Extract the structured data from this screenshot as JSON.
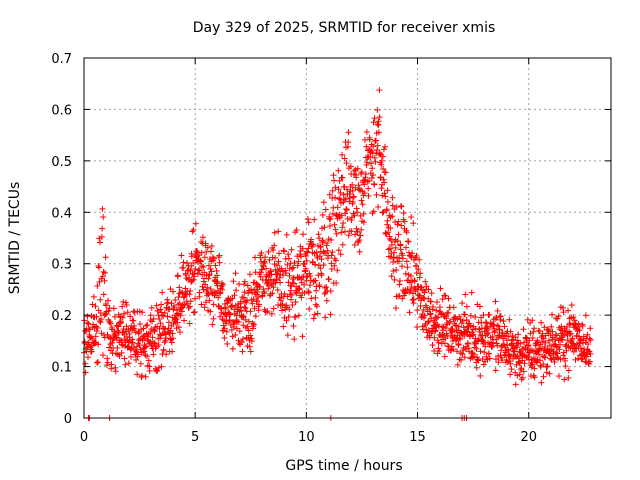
{
  "chart_data": {
    "type": "scatter",
    "title": "Day 329 of 2025, SRMTID for receiver xmis",
    "xlabel": "GPS time / hours",
    "ylabel": "SRMTID / TECUs",
    "xlim": [
      0,
      23.7
    ],
    "ylim": [
      0,
      0.7
    ],
    "xticks": [
      0,
      5,
      10,
      15,
      20
    ],
    "yticks": [
      0,
      0.1,
      0.2,
      0.3,
      0.4,
      0.5,
      0.6,
      0.7
    ],
    "ytick_labels": [
      "0",
      "0.1",
      "0.2",
      "0.3",
      "0.4",
      "0.5",
      "0.6",
      "0.7"
    ],
    "grid": true,
    "marker": "plus",
    "color": "#ff0000",
    "trend": [
      {
        "x": 0.0,
        "y": 0.14,
        "spread": 0.05
      },
      {
        "x": 0.5,
        "y": 0.17,
        "spread": 0.06
      },
      {
        "x": 0.8,
        "y": 0.25,
        "spread": 0.12
      },
      {
        "x": 1.2,
        "y": 0.15,
        "spread": 0.05
      },
      {
        "x": 2.0,
        "y": 0.17,
        "spread": 0.05
      },
      {
        "x": 3.0,
        "y": 0.15,
        "spread": 0.05
      },
      {
        "x": 4.0,
        "y": 0.19,
        "spread": 0.06
      },
      {
        "x": 4.6,
        "y": 0.26,
        "spread": 0.06
      },
      {
        "x": 5.2,
        "y": 0.3,
        "spread": 0.07
      },
      {
        "x": 6.0,
        "y": 0.24,
        "spread": 0.06
      },
      {
        "x": 6.5,
        "y": 0.2,
        "spread": 0.05
      },
      {
        "x": 7.5,
        "y": 0.21,
        "spread": 0.06
      },
      {
        "x": 8.0,
        "y": 0.28,
        "spread": 0.05
      },
      {
        "x": 8.7,
        "y": 0.26,
        "spread": 0.07
      },
      {
        "x": 9.5,
        "y": 0.25,
        "spread": 0.08
      },
      {
        "x": 10.5,
        "y": 0.3,
        "spread": 0.08
      },
      {
        "x": 11.0,
        "y": 0.33,
        "spread": 0.09
      },
      {
        "x": 11.8,
        "y": 0.45,
        "spread": 0.09
      },
      {
        "x": 12.5,
        "y": 0.42,
        "spread": 0.08
      },
      {
        "x": 13.2,
        "y": 0.55,
        "spread": 0.09
      },
      {
        "x": 13.7,
        "y": 0.35,
        "spread": 0.07
      },
      {
        "x": 14.5,
        "y": 0.3,
        "spread": 0.08
      },
      {
        "x": 15.5,
        "y": 0.2,
        "spread": 0.05
      },
      {
        "x": 16.5,
        "y": 0.17,
        "spread": 0.04
      },
      {
        "x": 17.5,
        "y": 0.16,
        "spread": 0.05
      },
      {
        "x": 18.5,
        "y": 0.16,
        "spread": 0.05
      },
      {
        "x": 19.5,
        "y": 0.12,
        "spread": 0.04
      },
      {
        "x": 20.2,
        "y": 0.13,
        "spread": 0.05
      },
      {
        "x": 21.0,
        "y": 0.14,
        "spread": 0.04
      },
      {
        "x": 22.0,
        "y": 0.16,
        "spread": 0.05
      },
      {
        "x": 22.8,
        "y": 0.14,
        "spread": 0.04
      }
    ],
    "zero_points": [
      0.2,
      0.25,
      1.15,
      11.1,
      17.0,
      17.1,
      17.2
    ]
  }
}
